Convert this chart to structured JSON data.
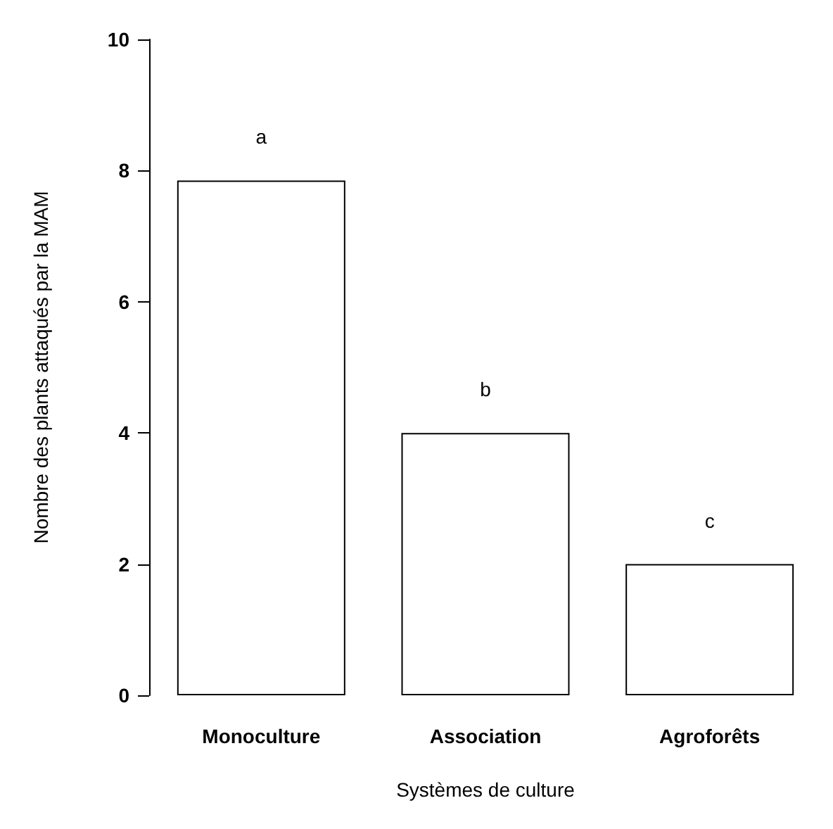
{
  "chart_data": {
    "type": "bar",
    "xlabel": "Systèmes de culture",
    "ylabel": "Nombre des plants attaqués par la MAM",
    "categories": [
      "Monoculture",
      "Association",
      "Agroforêts"
    ],
    "values": [
      7.85,
      4,
      2
    ],
    "color": "#ffffff",
    "ylim": [
      0,
      10
    ],
    "yticks": [
      0,
      2,
      4,
      6,
      8,
      10
    ],
    "grid": false,
    "annotations": [
      "a",
      "b",
      "c"
    ]
  }
}
